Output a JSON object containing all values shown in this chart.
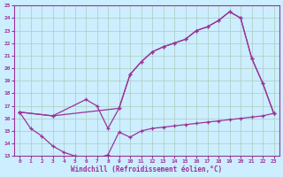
{
  "xlabel": "Windchill (Refroidissement éolien,°C)",
  "bg_color": "#cceeff",
  "grid_color": "#aaccbb",
  "line_color": "#993399",
  "xlim": [
    -0.5,
    23.5
  ],
  "ylim": [
    13,
    25
  ],
  "yticks": [
    13,
    14,
    15,
    16,
    17,
    18,
    19,
    20,
    21,
    22,
    23,
    24,
    25
  ],
  "xticks": [
    0,
    1,
    2,
    3,
    4,
    5,
    6,
    7,
    8,
    9,
    10,
    11,
    12,
    13,
    14,
    15,
    16,
    17,
    18,
    19,
    20,
    21,
    22,
    23
  ],
  "line1_x": [
    0,
    1,
    2,
    3,
    4,
    5,
    6,
    7,
    8,
    9,
    10,
    11,
    12,
    13,
    14,
    15,
    16,
    17,
    18,
    19,
    20,
    21,
    22,
    23
  ],
  "line1_y": [
    16.5,
    15.2,
    14.6,
    13.8,
    13.3,
    13.0,
    12.9,
    12.8,
    13.1,
    14.9,
    14.5,
    15.0,
    15.2,
    15.3,
    15.4,
    15.5,
    15.6,
    15.7,
    15.8,
    15.9,
    16.0,
    16.1,
    16.2,
    16.4
  ],
  "line2_x": [
    0,
    3,
    6,
    7,
    8,
    9,
    10,
    11,
    12,
    13,
    14,
    15,
    16,
    17,
    18,
    19,
    20,
    21,
    22,
    23
  ],
  "line2_y": [
    16.5,
    16.2,
    17.5,
    17.0,
    15.2,
    16.8,
    19.5,
    20.5,
    21.3,
    21.7,
    22.0,
    22.3,
    23.0,
    23.3,
    23.8,
    24.5,
    24.0,
    20.8,
    18.8,
    16.4
  ],
  "line3_x": [
    0,
    3,
    9,
    10,
    11,
    12,
    13,
    14,
    15,
    16,
    17,
    18,
    19,
    20,
    21,
    22,
    23
  ],
  "line3_y": [
    16.5,
    16.2,
    16.8,
    19.5,
    20.5,
    21.3,
    21.7,
    22.0,
    22.3,
    23.0,
    23.3,
    23.8,
    24.5,
    24.0,
    20.8,
    18.8,
    16.4
  ]
}
